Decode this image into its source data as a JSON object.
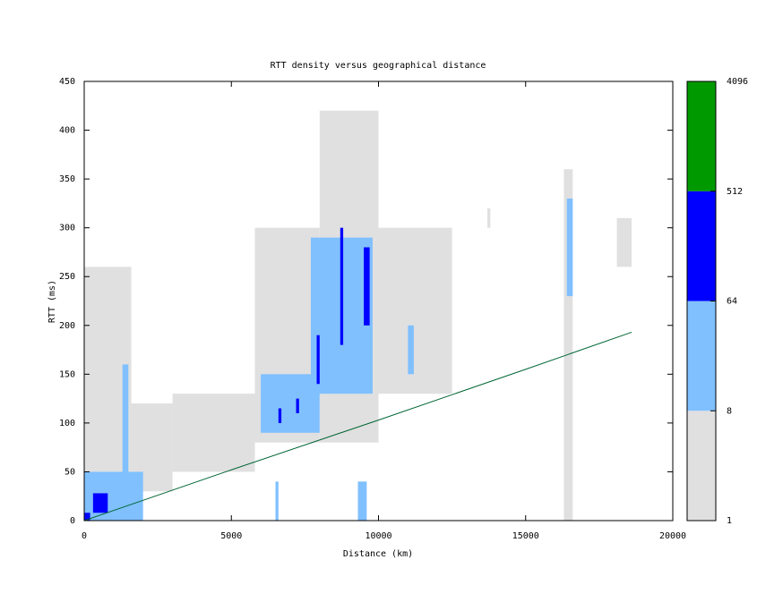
{
  "chart_data": {
    "type": "heatmap",
    "title": "RTT density versus geographical distance",
    "xlabel": "Distance (km)",
    "ylabel": "RTT (ms)",
    "xlim": [
      0,
      20000
    ],
    "xticks": [
      0,
      5000,
      10000,
      15000,
      20000
    ],
    "ylim": [
      0,
      450
    ],
    "yticks": [
      0,
      50,
      100,
      150,
      200,
      250,
      300,
      350,
      400,
      450
    ],
    "cells": {
      "x0": [
        0,
        1600,
        5800,
        8000,
        3000,
        10000,
        16300,
        18100,
        13700,
        0,
        6000,
        7700,
        1300,
        16400,
        6500,
        9300,
        11000,
        300,
        0,
        6600,
        7900,
        8700,
        9500,
        7200
      ],
      "x1": [
        1600,
        3000,
        8000,
        10000,
        5800,
        12500,
        16600,
        18600,
        13800,
        2000,
        8000,
        9800,
        1500,
        16600,
        6600,
        9600,
        11200,
        800,
        200,
        6700,
        8000,
        8800,
        9700,
        7300
      ],
      "y0": [
        50,
        30,
        80,
        80,
        50,
        130,
        0,
        260,
        300,
        0,
        90,
        130,
        40,
        230,
        0,
        0,
        150,
        8,
        0,
        100,
        140,
        180,
        200,
        110
      ],
      "y1": [
        260,
        120,
        300,
        420,
        130,
        300,
        360,
        310,
        320,
        50,
        150,
        290,
        160,
        330,
        40,
        40,
        200,
        28,
        8,
        115,
        190,
        300,
        280,
        125
      ],
      "count": [
        2,
        2,
        3,
        3,
        2,
        2,
        2,
        2,
        2,
        20,
        30,
        30,
        10,
        12,
        12,
        12,
        10,
        200,
        300,
        100,
        100,
        100,
        100,
        100
      ]
    },
    "line": {
      "color": "#006633",
      "x": [
        0,
        5000,
        10000,
        15000,
        18600
      ],
      "y": [
        0,
        52,
        103,
        155,
        193
      ]
    },
    "colorbar": {
      "log_scale": true,
      "ticks": [
        1,
        8,
        64,
        512,
        4096
      ],
      "colors": [
        "#e0e0e0",
        "#80c0ff",
        "#0000ff",
        "#009900"
      ]
    }
  }
}
